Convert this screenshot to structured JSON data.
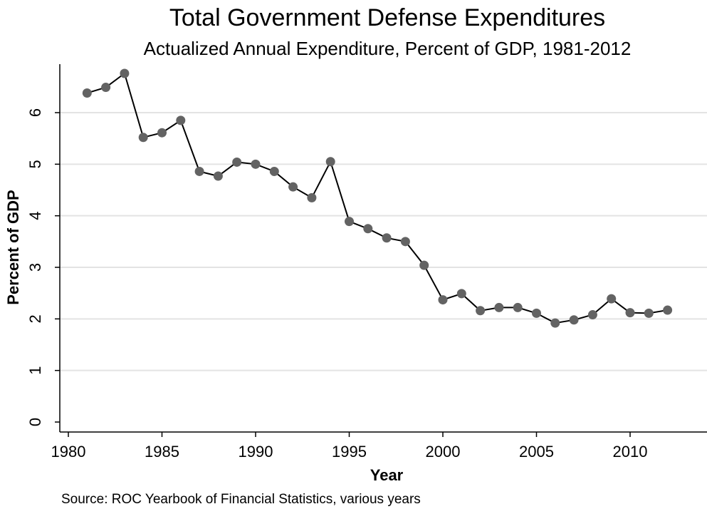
{
  "chart_data": {
    "type": "line",
    "title": "Total Government Defense Expenditures",
    "subtitle": "Actualized Annual Expenditure, Percent of GDP, 1981-2012",
    "xlabel": "Year",
    "ylabel": "Percent of GDP",
    "note": "Source: ROC Yearbook of Financial Statistics, various years",
    "xlim": [
      1980,
      2014
    ],
    "ylim": [
      0,
      7
    ],
    "x_ticks": [
      1980,
      1985,
      1990,
      1995,
      2000,
      2005,
      2010
    ],
    "y_ticks": [
      0,
      1,
      2,
      3,
      4,
      5,
      6
    ],
    "grid": true,
    "marker_color": "#636363",
    "line_color": "#000000",
    "series": [
      {
        "x": [
          1981,
          1982,
          1983,
          1984,
          1985,
          1986,
          1987,
          1988,
          1989,
          1990,
          1991,
          1992,
          1993,
          1994,
          1995,
          1996,
          1997,
          1998,
          1999,
          2000,
          2001,
          2002,
          2003,
          2004,
          2005,
          2006,
          2007,
          2008,
          2009,
          2010,
          2011,
          2012
        ],
        "y": [
          6.38,
          6.49,
          6.76,
          5.52,
          5.61,
          5.85,
          4.86,
          4.77,
          5.04,
          5.0,
          4.86,
          4.56,
          4.35,
          5.05,
          3.89,
          3.75,
          3.57,
          3.5,
          3.04,
          2.37,
          2.49,
          2.16,
          2.22,
          2.22,
          2.11,
          1.92,
          1.98,
          2.08,
          2.39,
          2.12,
          2.11,
          2.17
        ]
      }
    ]
  }
}
